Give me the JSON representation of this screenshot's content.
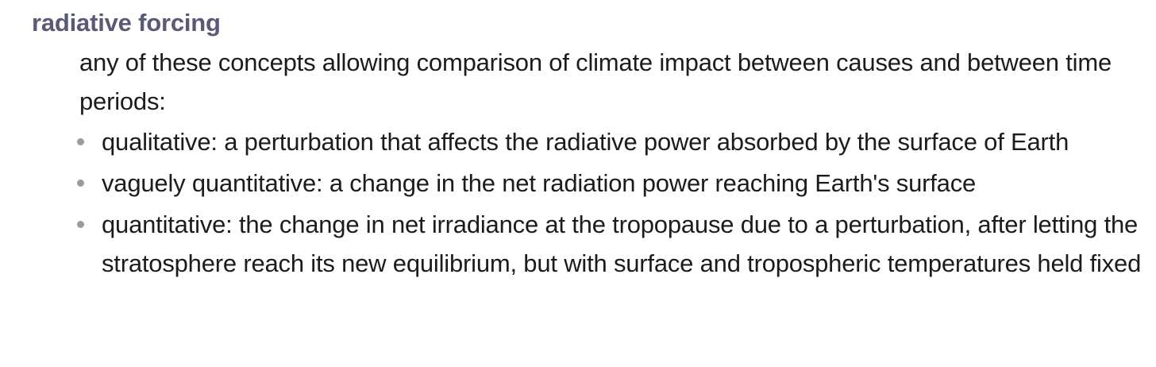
{
  "entry": {
    "term": "radiative forcing",
    "intro": "any of these concepts allowing comparison of climate impact between causes and between time periods:",
    "senses": [
      "qualitative: a perturbation that affects the radiative power absorbed by the surface of Earth",
      "vaguely quantitative: a change in the net radiation power reaching Earth's surface",
      "quantitative: the change in net irradiance at the tropopause due to a perturbation, after letting the stratosphere reach its new equilibrium, but with surface and tropospheric temperatures held fixed"
    ]
  }
}
